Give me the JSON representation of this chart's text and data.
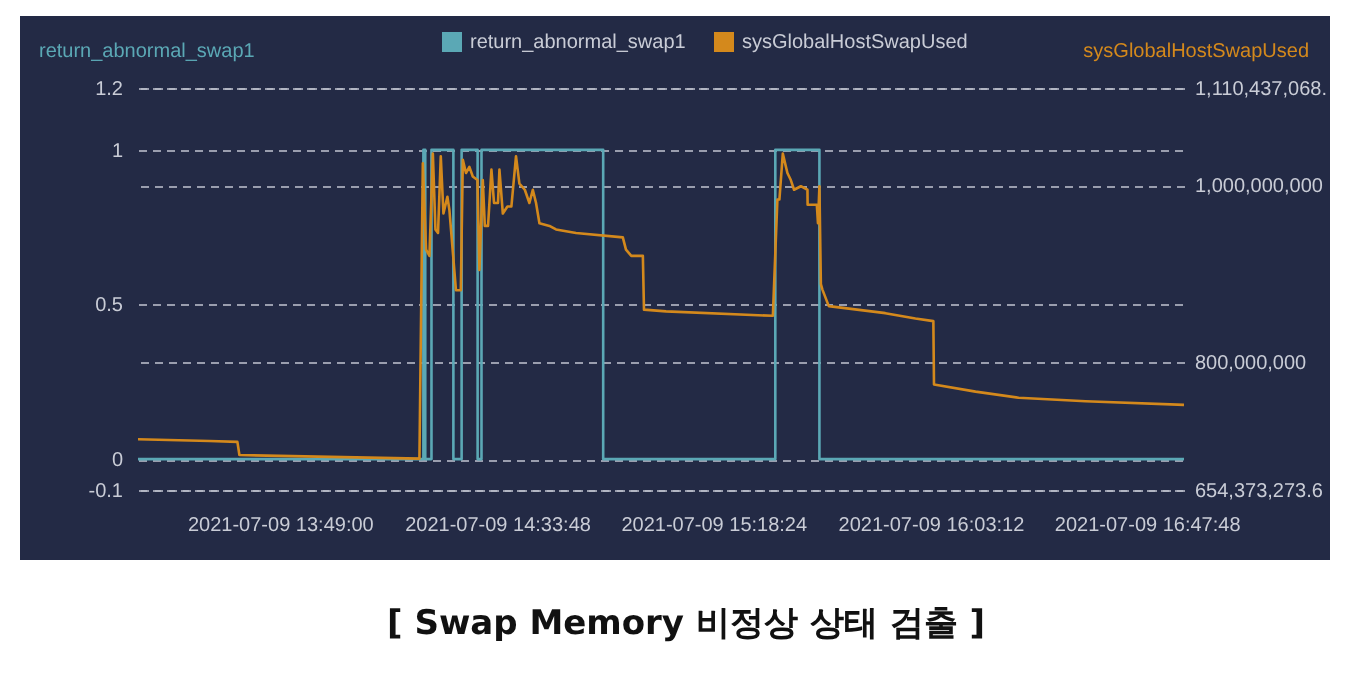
{
  "chart_data": {
    "type": "line",
    "title": "[ Swap Memory 비정상 상태 검출 ]",
    "ylabel": "return_abnormal_swap1",
    "y2label": "sysGlobalHostSwapUsed",
    "legend": "top",
    "grid": "y",
    "xlim": [
      "2021-07-09T13:19:45",
      "2021-07-09T16:55:30"
    ],
    "xticks": [
      {
        "value": "2021-07-09T13:49:00",
        "label": "2021-07-09 13:49:00"
      },
      {
        "value": "2021-07-09T14:33:48",
        "label": "2021-07-09 14:33:48"
      },
      {
        "value": "2021-07-09T15:18:24",
        "label": "2021-07-09 15:18:24"
      },
      {
        "value": "2021-07-09T16:03:12",
        "label": "2021-07-09 16:03:12"
      },
      {
        "value": "2021-07-09T16:47:48",
        "label": "2021-07-09 16:47:48"
      }
    ],
    "ylim": [
      -0.1,
      1.2
    ],
    "yticks": [
      -0.1,
      0,
      0.5,
      1,
      1.2
    ],
    "y2lim": [
      654373273.6,
      1110437068
    ],
    "y2ticks": [
      {
        "value": 654373273.6,
        "label": "654,373,273.6"
      },
      {
        "value": 800000000,
        "label": "800,000,000"
      },
      {
        "value": 1000000000,
        "label": "1,000,000,000"
      },
      {
        "value": 1110437068,
        "label": "1,110,437,068."
      }
    ],
    "series": [
      {
        "name": "return_abnormal_swap1",
        "type": "step",
        "color": "#5ba8b5",
        "x": [
          "2021-07-09T13:19:45",
          "2021-07-09T14:18:37",
          "2021-07-09T14:19:00",
          "2021-07-09T14:20:17",
          "2021-07-09T14:24:48",
          "2021-07-09T14:26:30",
          "2021-07-09T14:29:48",
          "2021-07-09T14:30:36",
          "2021-07-09T14:55:42",
          "2021-07-09T15:31:12",
          "2021-07-09T15:40:18",
          "2021-07-09T16:55:30"
        ],
        "values": [
          0,
          1,
          0,
          1,
          0,
          1,
          0,
          1,
          0,
          1,
          0,
          0
        ]
      },
      {
        "name": "sysGlobalHostSwapUsed",
        "axis": "y2",
        "color": "#d4891c",
        "x": [
          "2021-07-09T13:19:45",
          "2021-07-09T13:34:30",
          "2021-07-09T13:40:15",
          "2021-07-09T13:40:40",
          "2021-07-09T14:17:48",
          "2021-07-09T14:18:30",
          "2021-07-09T14:19:10",
          "2021-07-09T14:19:52",
          "2021-07-09T14:20:34",
          "2021-07-09T14:21:06",
          "2021-07-09T14:21:38",
          "2021-07-09T14:22:12",
          "2021-07-09T14:22:45",
          "2021-07-09T14:23:34",
          "2021-07-09T14:23:59",
          "2021-07-09T14:25:20",
          "2021-07-09T14:26:20",
          "2021-07-09T14:26:45",
          "2021-07-09T14:27:24",
          "2021-07-09T14:28:06",
          "2021-07-09T14:28:48",
          "2021-07-09T14:29:46",
          "2021-07-09T14:30:10",
          "2021-07-09T14:30:52",
          "2021-07-09T14:31:17",
          "2021-07-09T14:31:57",
          "2021-07-09T14:32:39",
          "2021-07-09T14:33:11",
          "2021-07-09T14:34:00",
          "2021-07-09T14:34:18",
          "2021-07-09T14:35:00",
          "2021-07-09T14:35:57",
          "2021-07-09T14:36:46",
          "2021-07-09T14:37:43",
          "2021-07-09T14:38:25",
          "2021-07-09T14:39:32",
          "2021-07-09T14:40:29",
          "2021-07-09T14:41:11",
          "2021-07-09T14:41:51",
          "2021-07-09T14:42:33",
          "2021-07-09T14:44:37",
          "2021-07-09T14:45:58",
          "2021-07-09T14:50:06",
          "2021-07-09T14:59:45",
          "2021-07-09T15:00:24",
          "2021-07-09T15:01:30",
          "2021-07-09T15:03:53",
          "2021-07-09T15:04:07",
          "2021-07-09T15:08:40",
          "2021-07-09T15:30:42",
          "2021-07-09T15:31:38",
          "2021-07-09T15:32:03",
          "2021-07-09T15:32:45",
          "2021-07-09T15:33:42",
          "2021-07-09T15:34:24",
          "2021-07-09T15:35:04",
          "2021-07-09T15:36:28",
          "2021-07-09T15:37:50",
          "2021-07-09T15:37:52",
          "2021-07-09T15:39:46",
          "2021-07-09T15:40:00",
          "2021-07-09T15:40:18",
          "2021-07-09T15:40:36",
          "2021-07-09T15:40:54",
          "2021-07-09T15:42:14",
          "2021-07-09T15:53:54",
          "2021-07-09T16:00:06",
          "2021-07-09T16:03:48",
          "2021-07-09T16:03:56",
          "2021-07-09T16:12:30",
          "2021-07-09T16:21:24",
          "2021-07-09T16:35:12",
          "2021-07-09T16:55:30"
        ],
        "values": [
          712000000,
          710000000,
          709000000,
          694000000,
          690000000,
          1025000000,
          927000000,
          920000000,
          1036000000,
          950000000,
          946000000,
          1033000000,
          968000000,
          987000000,
          972000000,
          881000000,
          881000000,
          1029000000,
          1014000000,
          1021000000,
          1010000000,
          1006000000,
          904000000,
          1006000000,
          954000000,
          954000000,
          1018000000,
          980000000,
          980000000,
          1018000000,
          968000000,
          976000000,
          976000000,
          1033000000,
          1002000000,
          995000000,
          980000000,
          995000000,
          980000000,
          957000000,
          954000000,
          950000000,
          946000000,
          941000000,
          927000000,
          920000000,
          920000000,
          859000000,
          857000000,
          852000000,
          984000000,
          984000000,
          1036000000,
          1014000000,
          1006000000,
          995000000,
          999000000,
          995000000,
          978000000,
          978000000,
          957000000,
          999000000,
          888000000,
          882000000,
          863000000,
          855000000,
          849000000,
          846000000,
          774000000,
          766000000,
          759000000,
          755000000,
          751000000
        ]
      }
    ]
  }
}
